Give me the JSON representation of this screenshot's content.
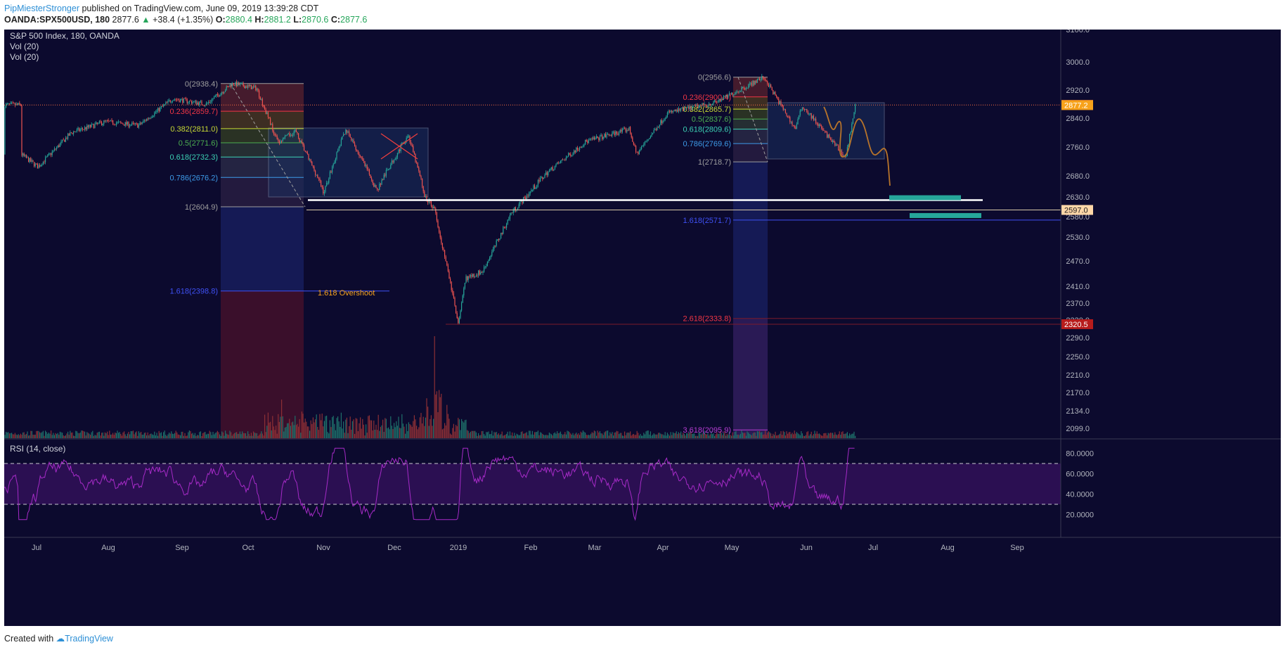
{
  "header": {
    "author": "PipMiesterStronger",
    "published": "published on TradingView.com, June 09, 2019 13:39:28 CDT",
    "symbol": "OANDA:SPX500USD, 180",
    "last": "2877.6",
    "change": "+38.4 (+1.35%)",
    "o_label": "O:",
    "o_value": "2880.4",
    "h_label": "H:",
    "h_value": "2881.2",
    "l_label": "L:",
    "l_value": "2870.6",
    "c_label": "C:",
    "c_value": "2877.6"
  },
  "legend": {
    "title": "S&P 500 Index, 180, OANDA",
    "vol1": "Vol (20)",
    "vol2": "Vol (20)"
  },
  "footer": {
    "created": "Created with",
    "brand": "TradingView"
  },
  "colors": {
    "background": "#0c0a2e",
    "bull": "#26a69a",
    "bear": "#ef5350",
    "rsi_line": "#a62bc7",
    "rsi_band": "#2b0f52",
    "price_line": "#ff7043"
  },
  "chart_data": {
    "type": "candlestick",
    "title": "S&P 500 Index, 180, OANDA",
    "x_ticks": [
      "Jul",
      "Aug",
      "Sep",
      "Oct",
      "Nov",
      "Dec",
      "2019",
      "Feb",
      "Mar",
      "Apr",
      "May",
      "Jun",
      "Jul",
      "Aug",
      "Sep"
    ],
    "y_ticks": [
      "3100.0",
      "3000.0",
      "2920.0",
      "2840.0",
      "2760.0",
      "2680.0",
      "2630.0",
      "2580.0",
      "2530.0",
      "2470.0",
      "2410.0",
      "2370.0",
      "2330.0",
      "2290.0",
      "2250.0",
      "2210.0",
      "2170.0",
      "2134.0",
      "2099.0"
    ],
    "y_range": [
      2090,
      3115
    ],
    "price_path": [
      {
        "date": "2018-06-25",
        "close": 2740
      },
      {
        "date": "2018-07-02",
        "close": 2705
      },
      {
        "date": "2018-07-16",
        "close": 2800
      },
      {
        "date": "2018-07-30",
        "close": 2830
      },
      {
        "date": "2018-08-13",
        "close": 2820
      },
      {
        "date": "2018-08-27",
        "close": 2895
      },
      {
        "date": "2018-09-10",
        "close": 2880
      },
      {
        "date": "2018-09-21",
        "close": 2938.4
      },
      {
        "date": "2018-10-01",
        "close": 2925
      },
      {
        "date": "2018-10-10",
        "close": 2770
      },
      {
        "date": "2018-10-17",
        "close": 2805
      },
      {
        "date": "2018-10-29",
        "close": 2640
      },
      {
        "date": "2018-11-07",
        "close": 2810
      },
      {
        "date": "2018-11-20",
        "close": 2645
      },
      {
        "date": "2018-12-03",
        "close": 2795
      },
      {
        "date": "2018-12-10",
        "close": 2630
      },
      {
        "date": "2018-12-14",
        "close": 2600
      },
      {
        "date": "2018-12-24",
        "close": 2320.5
      },
      {
        "date": "2018-12-27",
        "close": 2430
      },
      {
        "date": "2019-01-03",
        "close": 2445
      },
      {
        "date": "2019-01-15",
        "close": 2590
      },
      {
        "date": "2019-01-30",
        "close": 2690
      },
      {
        "date": "2019-02-15",
        "close": 2775
      },
      {
        "date": "2019-03-05",
        "close": 2810
      },
      {
        "date": "2019-03-08",
        "close": 2740
      },
      {
        "date": "2019-03-21",
        "close": 2855
      },
      {
        "date": "2019-04-10",
        "close": 2885
      },
      {
        "date": "2019-04-30",
        "close": 2956.6
      },
      {
        "date": "2019-05-13",
        "close": 2810
      },
      {
        "date": "2019-05-16",
        "close": 2875
      },
      {
        "date": "2019-06-03",
        "close": 2730
      },
      {
        "date": "2019-06-07",
        "close": 2877.6
      }
    ],
    "price_labels": [
      {
        "text": "2877.6",
        "value": 2877.6,
        "color": "#ef5350"
      },
      {
        "text": "2877.2",
        "value": 2877.2,
        "color": "#f7a21b"
      },
      {
        "text": "2597.0",
        "value": 2597.0,
        "color": "#ffd7a8"
      },
      {
        "text": "2320.5",
        "value": 2320.5,
        "color": "#b71c1c"
      }
    ],
    "fib_left": {
      "high": 2938.4,
      "low": 2604.9,
      "levels": [
        {
          "text": "0(2938.4)",
          "value": 2938.4,
          "color": "#9e9e9e"
        },
        {
          "text": "0.236(2859.7)",
          "value": 2859.7,
          "color": "#f23645"
        },
        {
          "text": "0.382(2811.0)",
          "value": 2811.0,
          "color": "#c7d934"
        },
        {
          "text": "0.5(2771.6)",
          "value": 2771.6,
          "color": "#4caf50"
        },
        {
          "text": "0.618(2732.3)",
          "value": 2732.3,
          "color": "#3cd1b4"
        },
        {
          "text": "0.786(2676.2)",
          "value": 2676.2,
          "color": "#3d9be9"
        },
        {
          "text": "1(2604.9)",
          "value": 2604.9,
          "color": "#9e9e9e"
        },
        {
          "text": "1.618(2398.8)",
          "value": 2398.8,
          "color": "#3f51f5"
        }
      ]
    },
    "fib_right": {
      "high": 2956.6,
      "low": 2718.7,
      "levels": [
        {
          "text": "0(2956.6)",
          "value": 2956.6,
          "color": "#9e9e9e"
        },
        {
          "text": "0.236(2900.4)",
          "value": 2900.4,
          "color": "#f23645"
        },
        {
          "text": "0.382(2865.7)",
          "value": 2865.7,
          "color": "#c7d934"
        },
        {
          "text": "0.5(2837.6)",
          "value": 2837.6,
          "color": "#4caf50"
        },
        {
          "text": "0.618(2809.6)",
          "value": 2809.6,
          "color": "#3cd1b4"
        },
        {
          "text": "0.786(2769.6)",
          "value": 2769.6,
          "color": "#3d9be9"
        },
        {
          "text": "1(2718.7)",
          "value": 2718.7,
          "color": "#9e9e9e"
        },
        {
          "text": "1.618(2571.7)",
          "value": 2571.7,
          "color": "#3f51f5"
        },
        {
          "text": "2.618(2333.8)",
          "value": 2333.8,
          "color": "#f23645"
        },
        {
          "text": "3.618(2095.9)",
          "value": 2095.9,
          "color": "#b53dd1"
        }
      ]
    },
    "annotation": "1.618 Overshoot",
    "rsi": {
      "label": "RSI (14, close)",
      "upper": 70,
      "lower": 30,
      "y_ticks": [
        "80.0000",
        "60.0000",
        "40.0000",
        "20.0000"
      ],
      "y_range": [
        10,
        90
      ]
    },
    "grid": false,
    "legend_position": "top-left"
  }
}
